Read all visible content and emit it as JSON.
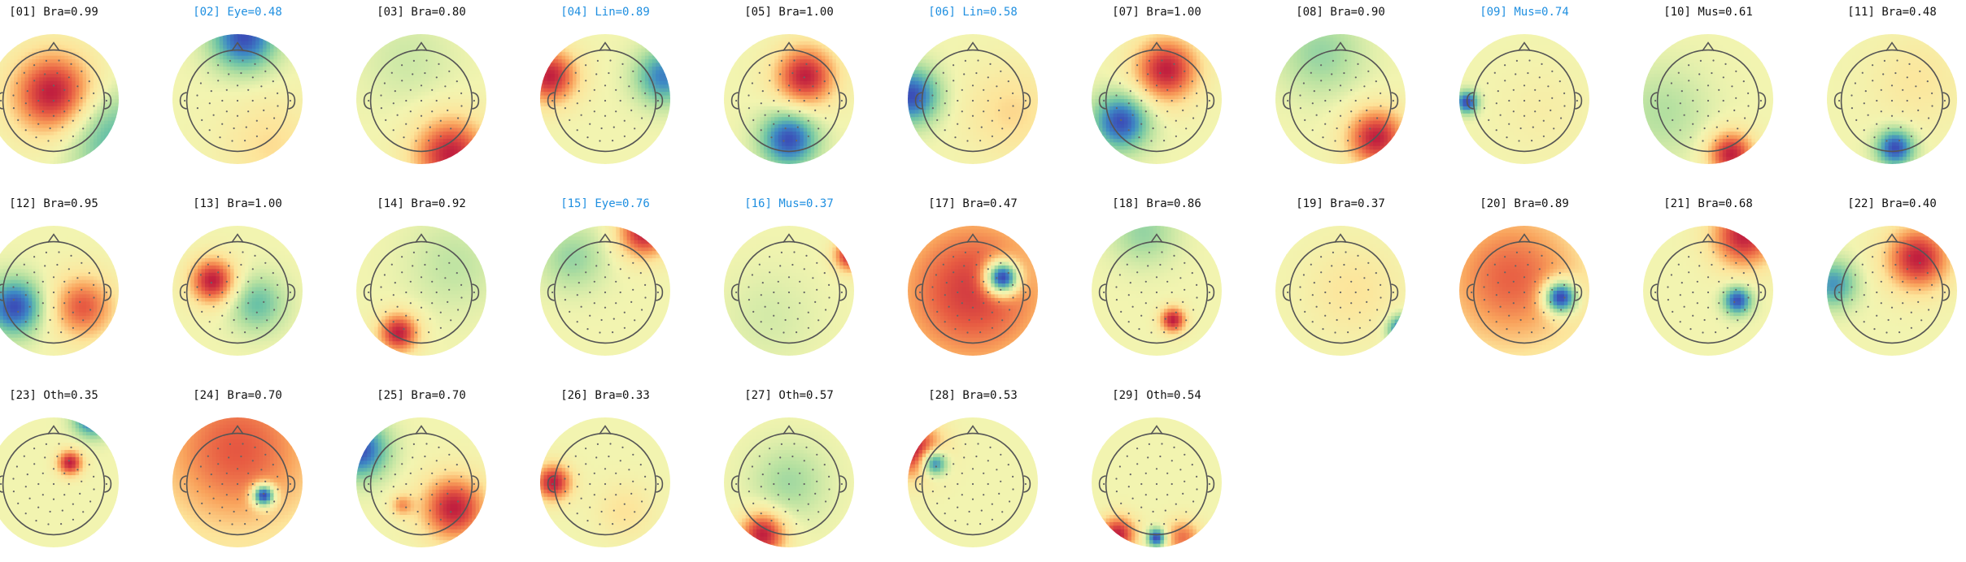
{
  "label_colors": {
    "normal": "#111111",
    "flagged": "#1f8fe0"
  },
  "colormap": [
    "#3b4fb8",
    "#3e8bc4",
    "#6cc3a5",
    "#b4e0a0",
    "#f2f4b0",
    "#fde49a",
    "#f9a35c",
    "#e75b42",
    "#c1203f"
  ],
  "icon": "head-outline-icon",
  "components": [
    {
      "id": "[01]",
      "label": "[01] Bra=0.99",
      "flagged": false,
      "spots": [
        {
          "u": 0,
          "v": -0.08,
          "val": 1,
          "s": 0.45
        },
        {
          "u": 0.85,
          "v": 0.55,
          "val": -0.55,
          "s": 0.5
        }
      ]
    },
    {
      "id": "[02]",
      "label": "[02] Eye=0.48",
      "flagged": true,
      "spots": [
        {
          "u": 0.1,
          "v": -0.95,
          "val": -0.9,
          "s": 0.35
        },
        {
          "u": 0.5,
          "v": 0.7,
          "val": 0.25,
          "s": 0.5
        }
      ]
    },
    {
      "id": "[03]",
      "label": "[03] Bra=0.80",
      "flagged": false,
      "spots": [
        {
          "u": 0.45,
          "v": 0.85,
          "val": 1,
          "s": 0.4
        },
        {
          "u": -0.2,
          "v": -0.6,
          "val": -0.15,
          "s": 0.5
        }
      ]
    },
    {
      "id": "[04]",
      "label": "[04] Lin=0.89",
      "flagged": true,
      "spots": [
        {
          "u": -0.85,
          "v": -0.35,
          "val": 1,
          "s": 0.3
        },
        {
          "u": 0.9,
          "v": -0.35,
          "val": -0.8,
          "s": 0.3
        }
      ]
    },
    {
      "id": "[05]",
      "label": "[05] Bra=1.00",
      "flagged": false,
      "spots": [
        {
          "u": 0.25,
          "v": -0.35,
          "val": 1,
          "s": 0.33
        },
        {
          "u": 0,
          "v": 0.62,
          "val": -1,
          "s": 0.3
        }
      ]
    },
    {
      "id": "[06]",
      "label": "[06] Lin=0.58",
      "flagged": true,
      "spots": [
        {
          "u": -0.95,
          "v": -0.05,
          "val": -0.85,
          "s": 0.3
        },
        {
          "u": 0.6,
          "v": 0.2,
          "val": 0.25,
          "s": 0.5
        }
      ]
    },
    {
      "id": "[07]",
      "label": "[07] Bra=1.00",
      "flagged": false,
      "spots": [
        {
          "u": 0.15,
          "v": -0.45,
          "val": 1,
          "s": 0.35
        },
        {
          "u": -0.55,
          "v": 0.35,
          "val": -1,
          "s": 0.3
        }
      ]
    },
    {
      "id": "[08]",
      "label": "[08] Bra=0.90",
      "flagged": false,
      "spots": [
        {
          "u": 0.55,
          "v": 0.6,
          "val": 1,
          "s": 0.32
        },
        {
          "u": -0.3,
          "v": -0.7,
          "val": -0.35,
          "s": 0.45
        }
      ]
    },
    {
      "id": "[09]",
      "label": "[09] Mus=0.74",
      "flagged": true,
      "spots": [
        {
          "u": -0.88,
          "v": 0.05,
          "val": -1,
          "s": 0.12
        },
        {
          "u": 0.3,
          "v": 0.2,
          "val": 0.1,
          "s": 0.5
        }
      ]
    },
    {
      "id": "[10]",
      "label": "[10] Mus=0.61",
      "flagged": false,
      "spots": [
        {
          "u": 0.35,
          "v": 0.85,
          "val": 1,
          "s": 0.25
        },
        {
          "u": -0.7,
          "v": 0.2,
          "val": -0.25,
          "s": 0.5
        }
      ]
    },
    {
      "id": "[11]",
      "label": "[11] Bra=0.48",
      "flagged": false,
      "spots": [
        {
          "u": 0.05,
          "v": 0.75,
          "val": -1,
          "s": 0.2
        },
        {
          "u": 0.4,
          "v": -0.3,
          "val": 0.2,
          "s": 0.5
        }
      ]
    },
    {
      "id": "[12]",
      "label": "[12] Bra=0.95",
      "flagged": false,
      "spots": [
        {
          "u": -0.6,
          "v": 0.25,
          "val": -1,
          "s": 0.3
        },
        {
          "u": 0.45,
          "v": 0.25,
          "val": 0.75,
          "s": 0.35
        }
      ]
    },
    {
      "id": "[13]",
      "label": "[13] Bra=1.00",
      "flagged": false,
      "spots": [
        {
          "u": -0.38,
          "v": -0.15,
          "val": 1,
          "s": 0.25
        },
        {
          "u": 0.3,
          "v": 0.2,
          "val": -0.5,
          "s": 0.3
        }
      ]
    },
    {
      "id": "[14]",
      "label": "[14] Bra=0.92",
      "flagged": false,
      "spots": [
        {
          "u": -0.35,
          "v": 0.65,
          "val": 1,
          "s": 0.22
        },
        {
          "u": 0.5,
          "v": -0.4,
          "val": -0.2,
          "s": 0.5
        }
      ]
    },
    {
      "id": "[15]",
      "label": "[15] Eye=0.76",
      "flagged": true,
      "spots": [
        {
          "u": 0.6,
          "v": -0.9,
          "val": 1,
          "s": 0.28
        },
        {
          "u": -0.5,
          "v": -0.5,
          "val": -0.35,
          "s": 0.35
        }
      ]
    },
    {
      "id": "[16]",
      "label": "[16] Mus=0.37",
      "flagged": true,
      "spots": [
        {
          "u": 0.95,
          "v": -0.55,
          "val": 1,
          "s": 0.18
        },
        {
          "u": -0.3,
          "v": 0.4,
          "val": -0.12,
          "s": 0.5
        }
      ]
    },
    {
      "id": "[17]",
      "label": "[17] Bra=0.47",
      "flagged": false,
      "spots": [
        {
          "u": 0.45,
          "v": -0.2,
          "val": -1,
          "s": 0.18
        },
        {
          "u": 0,
          "v": 0,
          "val": 0.5,
          "s": 0.9
        }
      ]
    },
    {
      "id": "[18]",
      "label": "[18] Bra=0.86",
      "flagged": false,
      "spots": [
        {
          "u": 0.25,
          "v": 0.45,
          "val": 1,
          "s": 0.14
        },
        {
          "u": -0.2,
          "v": -0.9,
          "val": -0.35,
          "s": 0.35
        }
      ]
    },
    {
      "id": "[19]",
      "label": "[19] Bra=0.37",
      "flagged": false,
      "spots": [
        {
          "u": 0.95,
          "v": 0.6,
          "val": -0.9,
          "s": 0.15
        },
        {
          "u": 0.2,
          "v": 0,
          "val": 0.2,
          "s": 0.5
        }
      ]
    },
    {
      "id": "[20]",
      "label": "[20] Bra=0.89",
      "flagged": false,
      "spots": [
        {
          "u": 0.55,
          "v": 0.1,
          "val": -1,
          "s": 0.18
        },
        {
          "u": -0.2,
          "v": -0.2,
          "val": 0.5,
          "s": 0.8
        }
      ]
    },
    {
      "id": "[21]",
      "label": "[21] Bra=0.68",
      "flagged": false,
      "spots": [
        {
          "u": 0.45,
          "v": 0.15,
          "val": -1,
          "s": 0.15
        },
        {
          "u": 0.55,
          "v": -0.85,
          "val": 1,
          "s": 0.35
        }
      ]
    },
    {
      "id": "[22]",
      "label": "[22] Bra=0.40",
      "flagged": false,
      "spots": [
        {
          "u": 0.4,
          "v": -0.5,
          "val": 1,
          "s": 0.35
        },
        {
          "u": -0.9,
          "v": -0.1,
          "val": -0.7,
          "s": 0.25
        }
      ]
    },
    {
      "id": "[23]",
      "label": "[23] Oth=0.35",
      "flagged": false,
      "spots": [
        {
          "u": 0.25,
          "v": -0.3,
          "val": 1,
          "s": 0.14
        },
        {
          "u": 0.6,
          "v": -1,
          "val": -1,
          "s": 0.2
        }
      ]
    },
    {
      "id": "[24]",
      "label": "[24] Bra=0.70",
      "flagged": false,
      "spots": [
        {
          "u": 0.4,
          "v": 0.2,
          "val": -1,
          "s": 0.12
        },
        {
          "u": 0,
          "v": -0.5,
          "val": 0.5,
          "s": 0.9
        }
      ]
    },
    {
      "id": "[25]",
      "label": "[25] Bra=0.70",
      "flagged": false,
      "spots": [
        {
          "u": 0.5,
          "v": 0.4,
          "val": 0.9,
          "s": 0.35
        },
        {
          "u": -0.95,
          "v": -0.5,
          "val": -0.9,
          "s": 0.3
        },
        {
          "u": -0.3,
          "v": 0.35,
          "val": 0.45,
          "s": 0.12
        }
      ]
    },
    {
      "id": "[26]",
      "label": "[26] Bra=0.33",
      "flagged": false,
      "spots": [
        {
          "u": -0.8,
          "v": 0,
          "val": 1,
          "s": 0.2
        },
        {
          "u": 0.3,
          "v": 0.45,
          "val": 0.25,
          "s": 0.3
        }
      ]
    },
    {
      "id": "[27]",
      "label": "[27] Oth=0.57",
      "flagged": false,
      "spots": [
        {
          "u": -0.4,
          "v": 0.8,
          "val": 1,
          "s": 0.25
        },
        {
          "u": 0,
          "v": 0,
          "val": -0.3,
          "s": 0.4
        }
      ]
    },
    {
      "id": "[28]",
      "label": "[28] Bra=0.53",
      "flagged": false,
      "spots": [
        {
          "u": -0.6,
          "v": -0.3,
          "val": -1,
          "s": 0.14
        },
        {
          "u": -0.9,
          "v": -0.5,
          "val": 0.9,
          "s": 0.3
        }
      ]
    },
    {
      "id": "[29]",
      "label": "[29] Oth=0.54",
      "flagged": false,
      "spots": [
        {
          "u": 0,
          "v": 0.85,
          "val": -1,
          "s": 0.1
        },
        {
          "u": -0.6,
          "v": 0.8,
          "val": 0.9,
          "s": 0.2
        },
        {
          "u": 0.4,
          "v": 0.85,
          "val": 0.6,
          "s": 0.2
        }
      ]
    }
  ]
}
